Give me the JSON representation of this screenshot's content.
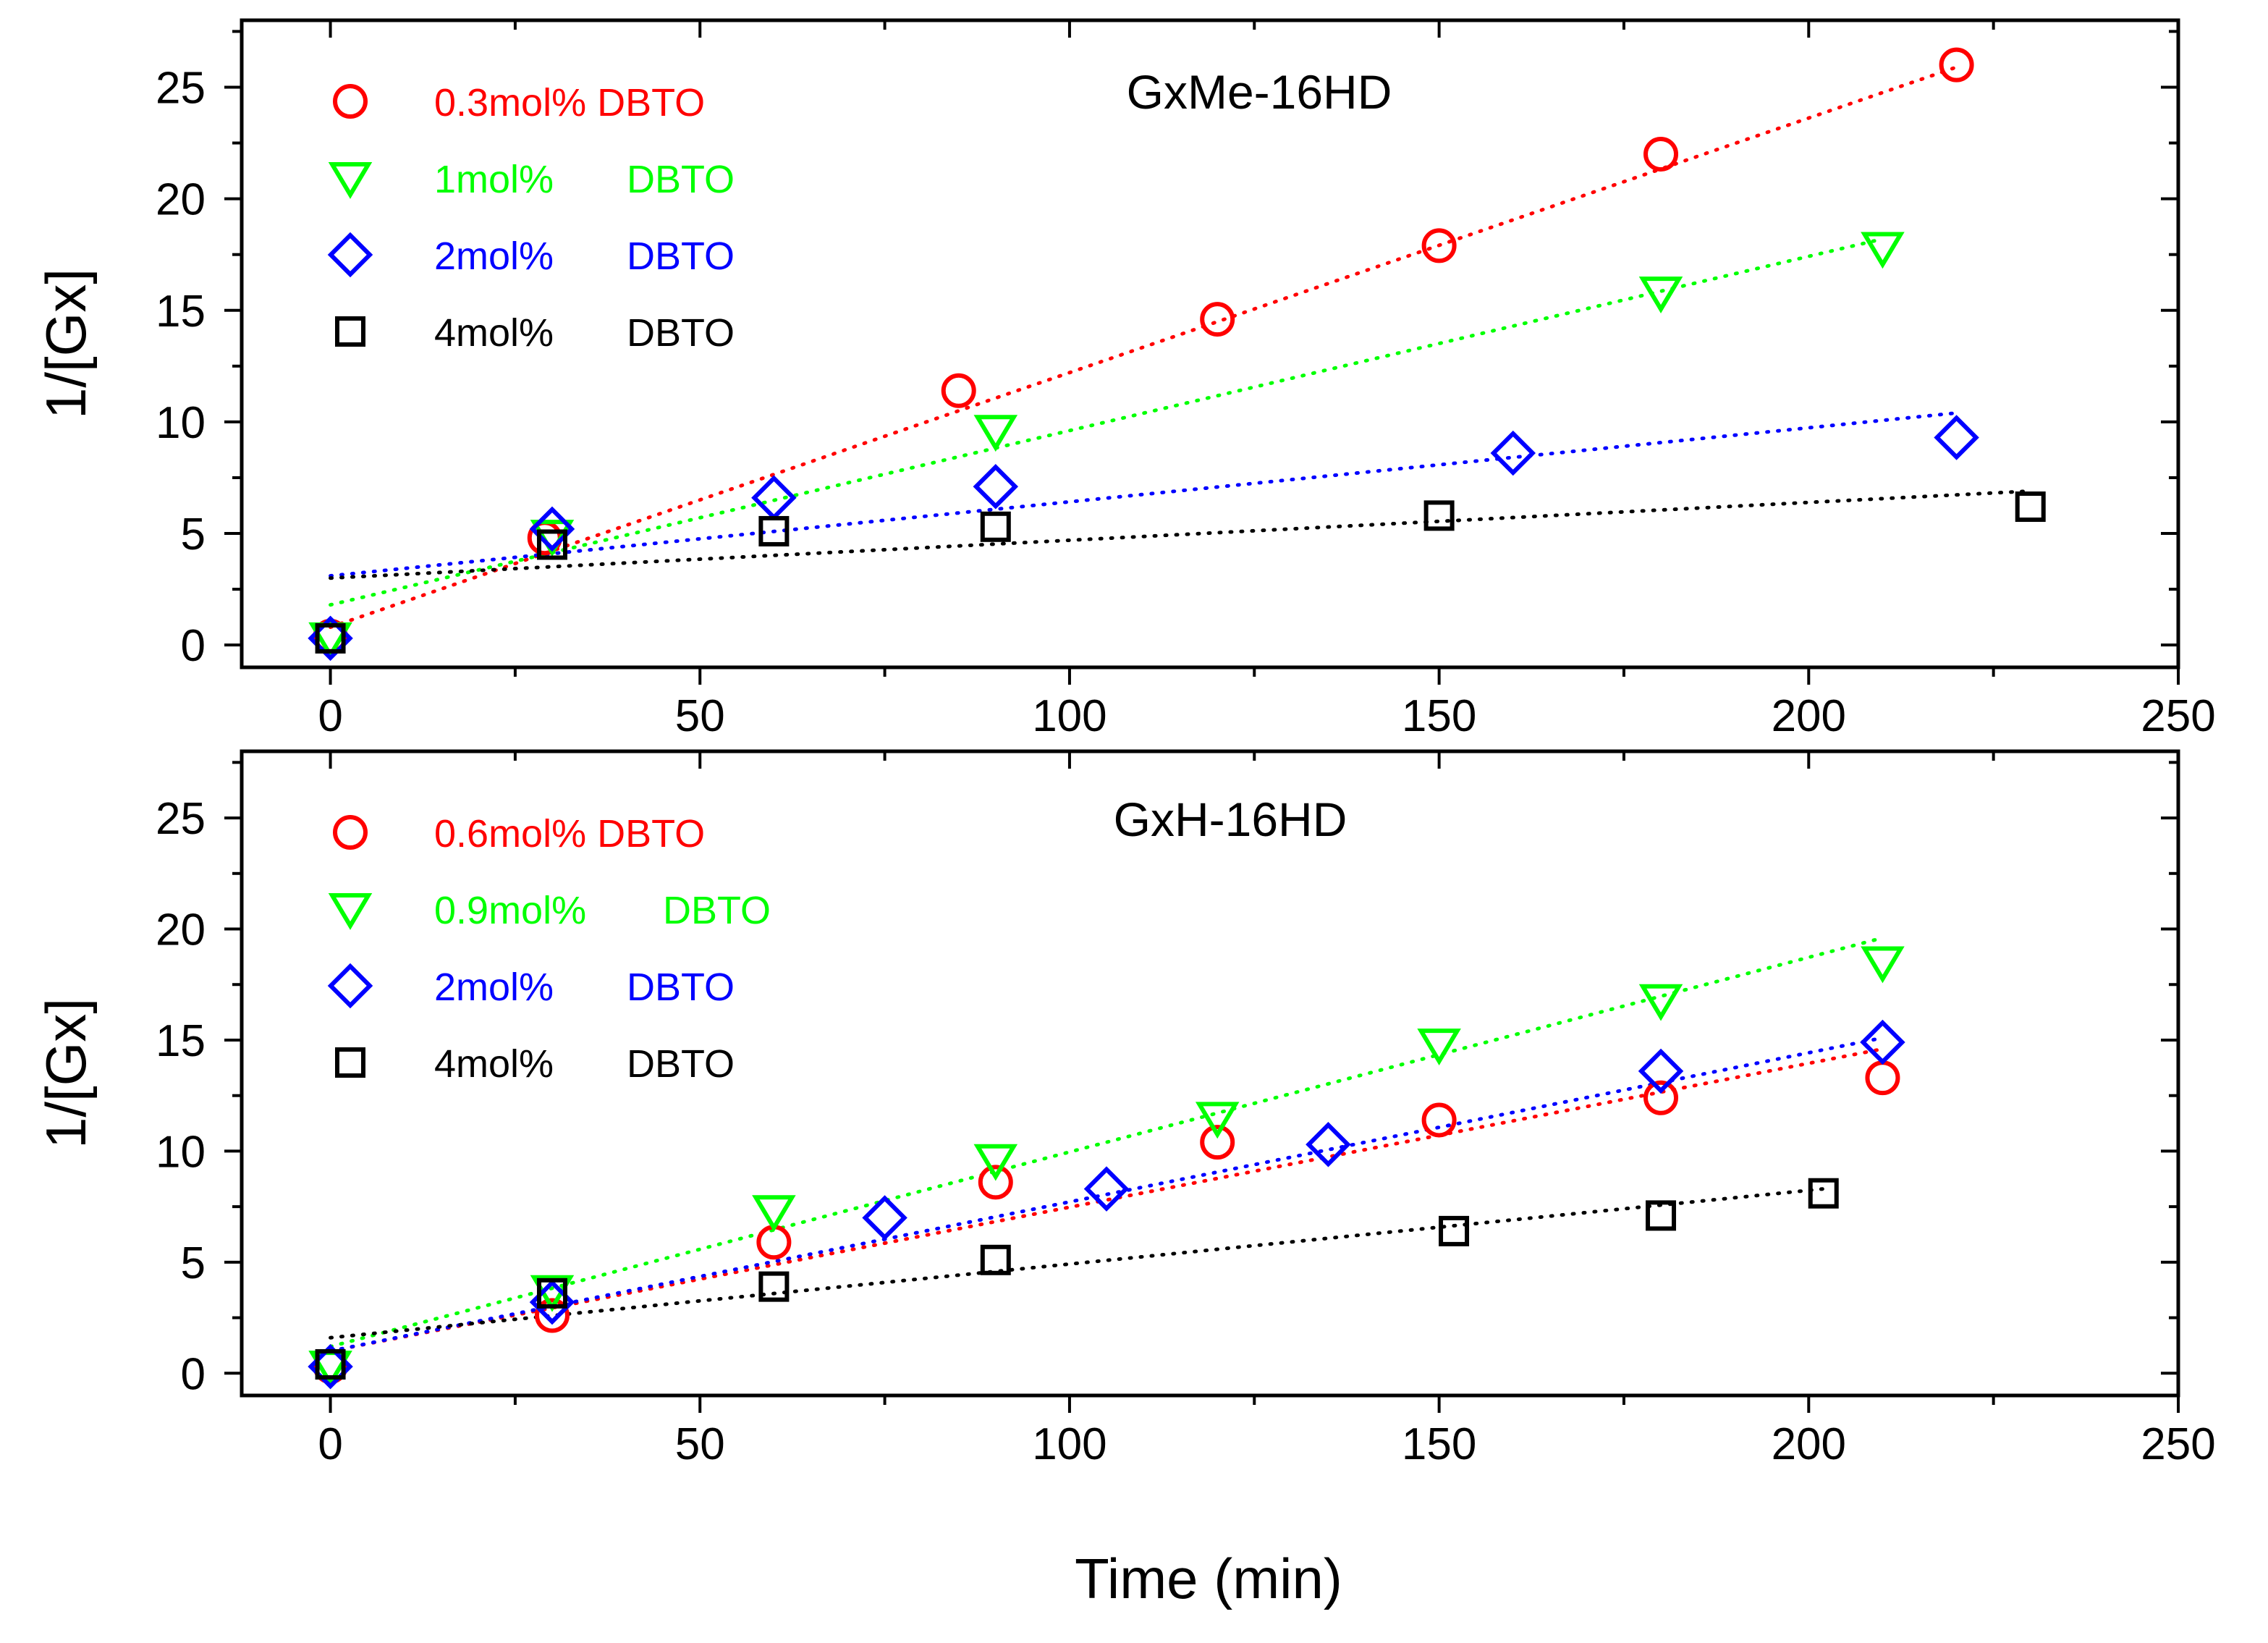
{
  "figure": {
    "xlabel": "Time (min)",
    "ylabel": "1/[Gx]"
  },
  "chart_data": [
    {
      "type": "scatter",
      "title": "GxMe-16HD",
      "xlabel": "Time (min)",
      "ylabel": "1/[Gx]",
      "xlim": [
        -12,
        250
      ],
      "ylim": [
        -1,
        28
      ],
      "xticks": [
        0,
        50,
        100,
        150,
        200,
        250
      ],
      "yticks": [
        0,
        5,
        10,
        15,
        20,
        25
      ],
      "fit_lines": "dotted linear fits",
      "series": [
        {
          "name": "0.3mol% DBTO",
          "legend_parts": [
            "0.3mol% DBTO"
          ],
          "color": "#ff0000",
          "marker": "circle",
          "x": [
            0,
            29,
            85,
            120,
            150,
            180,
            220
          ],
          "y": [
            0.4,
            4.8,
            11.4,
            14.6,
            17.9,
            22.0,
            26.0
          ],
          "fit": {
            "x": [
              0,
              220
            ],
            "y": [
              0.8,
              25.9
            ]
          }
        },
        {
          "name": "1mol%   DBTO",
          "legend_parts": [
            "1mol%",
            "DBTO"
          ],
          "color": "#00ff00",
          "marker": "triangle-down",
          "x": [
            0,
            30,
            90,
            180,
            210
          ],
          "y": [
            0.3,
            4.9,
            9.6,
            15.8,
            17.8
          ],
          "fit": {
            "x": [
              0,
              210
            ],
            "y": [
              1.8,
              18.2
            ]
          }
        },
        {
          "name": "2mol%   DBTO",
          "legend_parts": [
            "2mol%",
            "DBTO"
          ],
          "color": "#0000ff",
          "marker": "diamond",
          "x": [
            0,
            30,
            60,
            90,
            160,
            220
          ],
          "y": [
            0.3,
            5.2,
            6.6,
            7.1,
            8.6,
            9.3
          ],
          "fit": {
            "x": [
              0,
              220
            ],
            "y": [
              3.1,
              10.4
            ]
          }
        },
        {
          "name": "4mol%   DBTO",
          "legend_parts": [
            "4mol%",
            "DBTO"
          ],
          "color": "#000000",
          "marker": "square",
          "x": [
            0,
            30,
            60,
            90,
            150,
            230
          ],
          "y": [
            0.3,
            4.5,
            5.1,
            5.3,
            5.8,
            6.2
          ],
          "fit": {
            "x": [
              0,
              230
            ],
            "y": [
              3.0,
              6.9
            ]
          }
        }
      ]
    },
    {
      "type": "scatter",
      "title": "GxH-16HD",
      "xlabel": "Time (min)",
      "ylabel": "1/[Gx]",
      "xlim": [
        -12,
        250
      ],
      "ylim": [
        -1,
        28
      ],
      "xticks": [
        0,
        50,
        100,
        150,
        200,
        250
      ],
      "yticks": [
        0,
        5,
        10,
        15,
        20,
        25
      ],
      "fit_lines": "dotted linear fits",
      "series": [
        {
          "name": "0.6mol% DBTO",
          "legend_parts": [
            "0.6mol% DBTO"
          ],
          "color": "#ff0000",
          "marker": "circle",
          "x": [
            0,
            30,
            60,
            90,
            120,
            150,
            180,
            210
          ],
          "y": [
            0.3,
            2.6,
            5.9,
            8.6,
            10.4,
            11.4,
            12.4,
            13.3
          ],
          "fit": {
            "x": [
              0,
              210
            ],
            "y": [
              1.0,
              14.6
            ]
          }
        },
        {
          "name": "0.9mol%   DBTO",
          "legend_parts": [
            "0.9mol%",
            "DBTO"
          ],
          "color": "#00ff00",
          "marker": "triangle-down",
          "x": [
            0,
            30,
            60,
            90,
            120,
            150,
            180,
            210
          ],
          "y": [
            0.3,
            3.7,
            7.3,
            9.6,
            11.5,
            14.8,
            16.8,
            18.5
          ],
          "fit": {
            "x": [
              0,
              210
            ],
            "y": [
              1.2,
              19.6
            ]
          }
        },
        {
          "name": "2mol%   DBTO",
          "legend_parts": [
            "2mol%",
            "DBTO"
          ],
          "color": "#0000ff",
          "marker": "diamond",
          "x": [
            0,
            30,
            75,
            105,
            135,
            180,
            210
          ],
          "y": [
            0.3,
            3.2,
            7.0,
            8.3,
            10.3,
            13.6,
            14.9
          ],
          "fit": {
            "x": [
              0,
              210
            ],
            "y": [
              1.0,
              15.1
            ]
          }
        },
        {
          "name": "4mol%   DBTO",
          "legend_parts": [
            "4mol%",
            "DBTO"
          ],
          "color": "#000000",
          "marker": "square",
          "x": [
            0,
            30,
            60,
            90,
            152,
            180,
            202
          ],
          "y": [
            0.4,
            3.6,
            3.9,
            5.1,
            6.4,
            7.1,
            8.1
          ],
          "fit": {
            "x": [
              0,
              202
            ],
            "y": [
              1.6,
              8.3
            ]
          }
        }
      ]
    }
  ]
}
